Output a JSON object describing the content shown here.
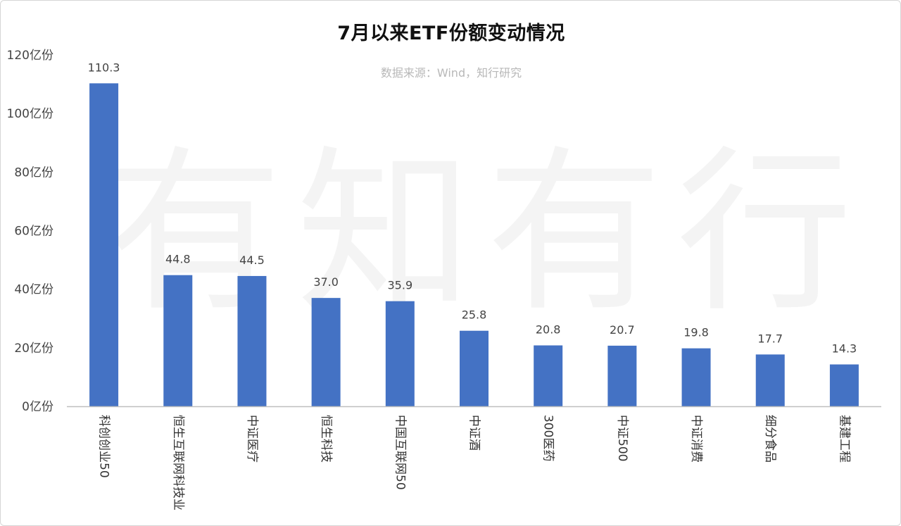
{
  "chart_data": {
    "type": "bar",
    "title": "7月以来ETF份额变动情况",
    "subtitle": "数据来源：Wind，知行研究",
    "watermark": "有知有行",
    "categories": [
      "科创创业50",
      "恒生互联网科技业",
      "中证医疗",
      "恒生科技",
      "中国互联网50",
      "中证酒",
      "300医药",
      "中证500",
      "中证消费",
      "细分食品",
      "基建工程"
    ],
    "values": [
      110.3,
      44.8,
      44.5,
      37.0,
      35.9,
      25.8,
      20.8,
      20.7,
      19.8,
      17.7,
      14.3
    ],
    "data_labels": [
      "110.3",
      "44.8",
      "44.5",
      "37.0",
      "35.9",
      "25.8",
      "20.8",
      "20.7",
      "19.8",
      "17.7",
      "14.3"
    ],
    "ylim": [
      0,
      120
    ],
    "yticks": [
      0,
      20,
      40,
      60,
      80,
      100,
      120
    ],
    "ytick_labels": [
      "0亿份",
      "20亿份",
      "40亿份",
      "60亿份",
      "80亿份",
      "100亿份",
      "120亿份"
    ],
    "xlabel": "",
    "ylabel": "",
    "grid": false,
    "bar_color": "#4472C4",
    "axis_color": "#bfbfbf"
  }
}
